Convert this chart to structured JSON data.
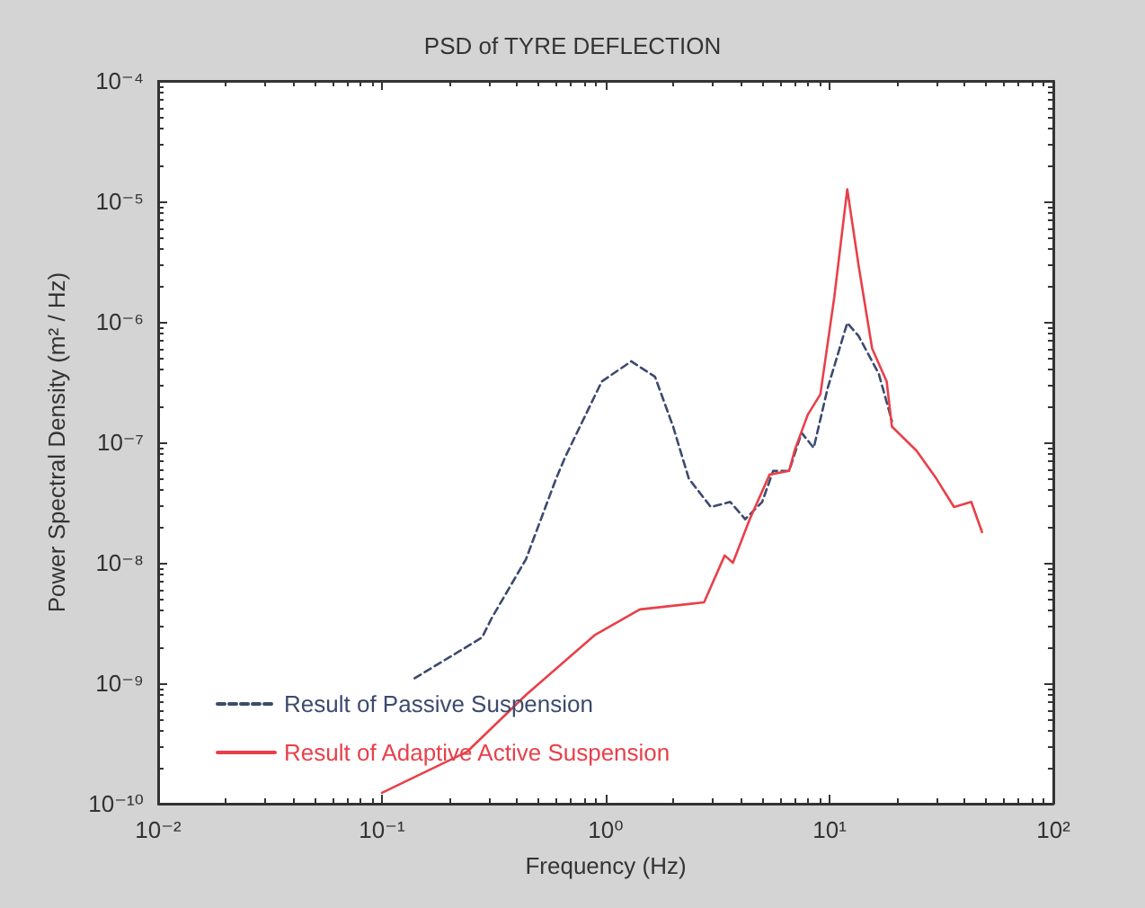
{
  "chart_data": {
    "type": "line",
    "title": "PSD of TYRE DEFLECTION",
    "xlabel": "Frequency (Hz)",
    "ylabel": "Power Spectral Density (m² / Hz)",
    "log": "xy",
    "grid": false,
    "legend": "bottom left",
    "marker": "none",
    "xlim": [
      0.01,
      100
    ],
    "ylim": [
      1e-10,
      0.0001
    ],
    "xticks": [
      {
        "value": 0.01,
        "label": "10⁻²"
      },
      {
        "value": 0.1,
        "label": "10⁻¹"
      },
      {
        "value": 1,
        "label": "10⁰"
      },
      {
        "value": 10,
        "label": "10¹"
      },
      {
        "value": 100,
        "label": "10²"
      }
    ],
    "yticks": [
      {
        "value": 1e-10,
        "label": "10⁻¹⁰"
      },
      {
        "value": 1e-09,
        "label": "10⁻⁹"
      },
      {
        "value": 1e-08,
        "label": "10⁻⁸"
      },
      {
        "value": 1e-07,
        "label": "10⁻⁷"
      },
      {
        "value": 1e-06,
        "label": "10⁻⁶"
      },
      {
        "value": 1e-05,
        "label": "10⁻⁵"
      },
      {
        "value": 0.0001,
        "label": "10⁻⁴"
      }
    ],
    "series": [
      {
        "name": "Result of Passive Suspension",
        "color": "#3c4a6e",
        "line_style": "dashed",
        "x": [
          0.14,
          0.28,
          0.31,
          0.44,
          0.6,
          0.66,
          0.96,
          1.3,
          1.66,
          2.0,
          2.35,
          2.95,
          3.6,
          4.2,
          5.0,
          5.6,
          6.6,
          7.5,
          8.5,
          9.8,
          12,
          13.5,
          16.6,
          19
        ],
        "values": [
          1.1e-09,
          2.4e-09,
          3.5e-09,
          1.07e-08,
          5e-08,
          7.6e-08,
          3.2e-07,
          4.7e-07,
          3.5e-07,
          1.35e-07,
          5e-08,
          2.9e-08,
          3.2e-08,
          2.3e-08,
          3.2e-08,
          5.8e-08,
          5.8e-08,
          1.2e-07,
          9e-08,
          2.8e-07,
          9.8e-07,
          7.6e-07,
          3.7e-07,
          1.5e-07
        ]
      },
      {
        "name": "Result of Adaptive Active Suspension",
        "color": "#e8404a",
        "line_style": "solid",
        "x": [
          0.1,
          0.24,
          0.44,
          0.89,
          1.42,
          2.75,
          3.4,
          3.7,
          4.4,
          5.4,
          6.6,
          7,
          8,
          9.1,
          10.5,
          12,
          13.5,
          15.5,
          18,
          19,
          24.5,
          30,
          36,
          43,
          48
        ],
        "values": [
          1.23e-10,
          2.7e-10,
          8e-10,
          2.5e-09,
          4.1e-09,
          4.7e-09,
          1.15e-08,
          1e-08,
          2.3e-08,
          5.4e-08,
          5.8e-08,
          8.7e-08,
          1.7e-07,
          2.5e-07,
          1.6e-06,
          1.26e-05,
          2.9e-06,
          6e-07,
          3.2e-07,
          1.35e-07,
          8.5e-08,
          5e-08,
          2.9e-08,
          3.2e-08,
          1.8e-08
        ]
      }
    ]
  }
}
